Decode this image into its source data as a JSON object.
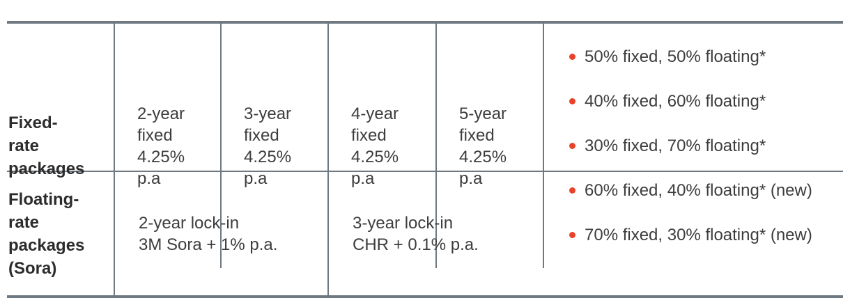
{
  "table": {
    "fixed_row": {
      "header": "Fixed-\nrate\npackages",
      "packages": [
        "2-year\nfixed\n4.25%\np.a",
        "3-year\nfixed\n4.25%\np.a",
        "4-year\nfixed\n4.25%\np.a",
        "5-year\nfixed\n4.25%\np.a"
      ],
      "allocations": [
        "50% fixed, 50% floating*",
        "40% fixed, 60% floating*",
        "30% fixed, 70% floating*",
        "60% fixed, 40% floating* (new)",
        "70% fixed, 30% floating* (new)"
      ]
    },
    "floating_row": {
      "header": "Floating-\nrate\npackages\n(Sora)",
      "packages": [
        "2-year lock-in\n3M Sora + 1% p.a.",
        "3-year lock-in\nCHR + 0.1% p.a."
      ]
    }
  },
  "colors": {
    "border": "#6f7982",
    "bullet": "#e8432a",
    "body_text": "#3d3d3d",
    "heading_text": "#2c2c2c"
  }
}
